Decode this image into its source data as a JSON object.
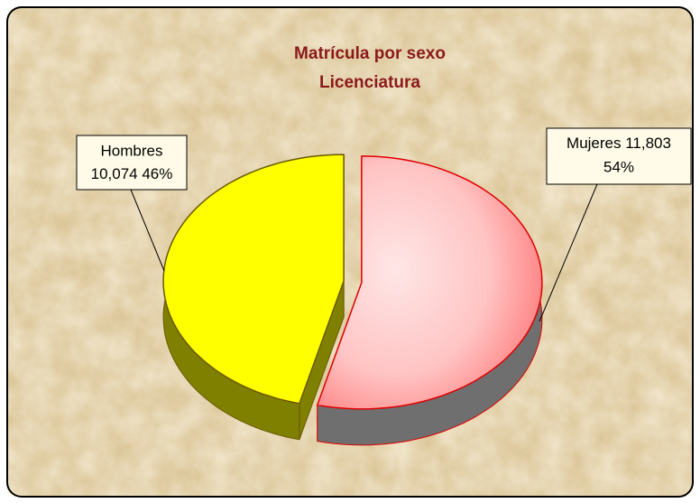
{
  "chart_data": {
    "type": "pie3d",
    "title": [
      "Matrícula por sexo",
      "Licenciatura"
    ],
    "categories": [
      "Hombres",
      "Mujeres"
    ],
    "values": [
      10074,
      11803
    ],
    "value_labels": [
      "10,074",
      "11,803"
    ],
    "percent_labels": [
      "46%",
      "54%"
    ],
    "colors": [
      "#ffff00",
      "#ffc4c4"
    ],
    "side_colors": [
      "#7f7f00",
      "#6f6f6f"
    ],
    "edge_colors": [
      "#6b5a00",
      "#e00000"
    ],
    "order": [
      1,
      0
    ]
  }
}
